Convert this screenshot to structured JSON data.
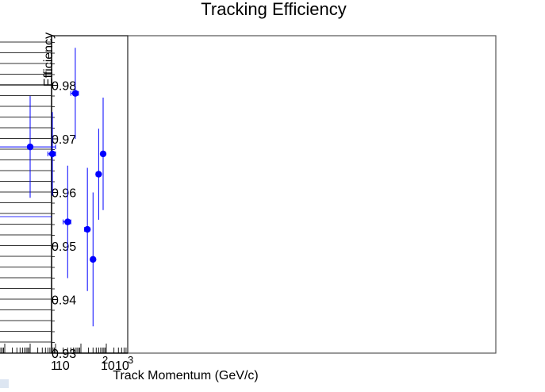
{
  "chart_data": {
    "type": "scatter",
    "title": "Tracking Efficiency",
    "xlabel": "Track Momentum (GeV/c)",
    "ylabel": "Efficiency",
    "x_scale": "log",
    "ylim": [
      0.93,
      0.99
    ],
    "y_ticks": [
      "0.93",
      "0.94",
      "0.95",
      "0.96",
      "0.97",
      "0.98"
    ],
    "x_tick_labels": [
      "1",
      "10",
      "10",
      "2",
      "10",
      "3"
    ],
    "grid": false,
    "series": [
      {
        "color": "#0000ff",
        "points": [
          {
            "x": 0.1,
            "xerr": 0.9,
            "y": 0.9685,
            "yerr": 0.0095
          },
          {
            "x": 0.75,
            "xerr": 0.25,
            "y": 0.9672,
            "yerr": 0.0078
          },
          {
            "x": 3,
            "xerr": 1,
            "y": 0.9545,
            "yerr": 0.0105
          },
          {
            "x": 6,
            "xerr": 2,
            "y": 0.9785,
            "yerr": 0.0085
          },
          {
            "x": 18,
            "xerr": 4,
            "y": 0.9531,
            "yerr": 0.0115
          },
          {
            "x": 30,
            "xerr": 5,
            "y": 0.9475,
            "yerr": 0.0125
          },
          {
            "x": 50,
            "xerr": 10,
            "y": 0.9634,
            "yerr": 0.0085
          },
          {
            "x": 75,
            "xerr": 10,
            "y": 0.9672,
            "yerr": 0.0105
          }
        ]
      }
    ]
  }
}
